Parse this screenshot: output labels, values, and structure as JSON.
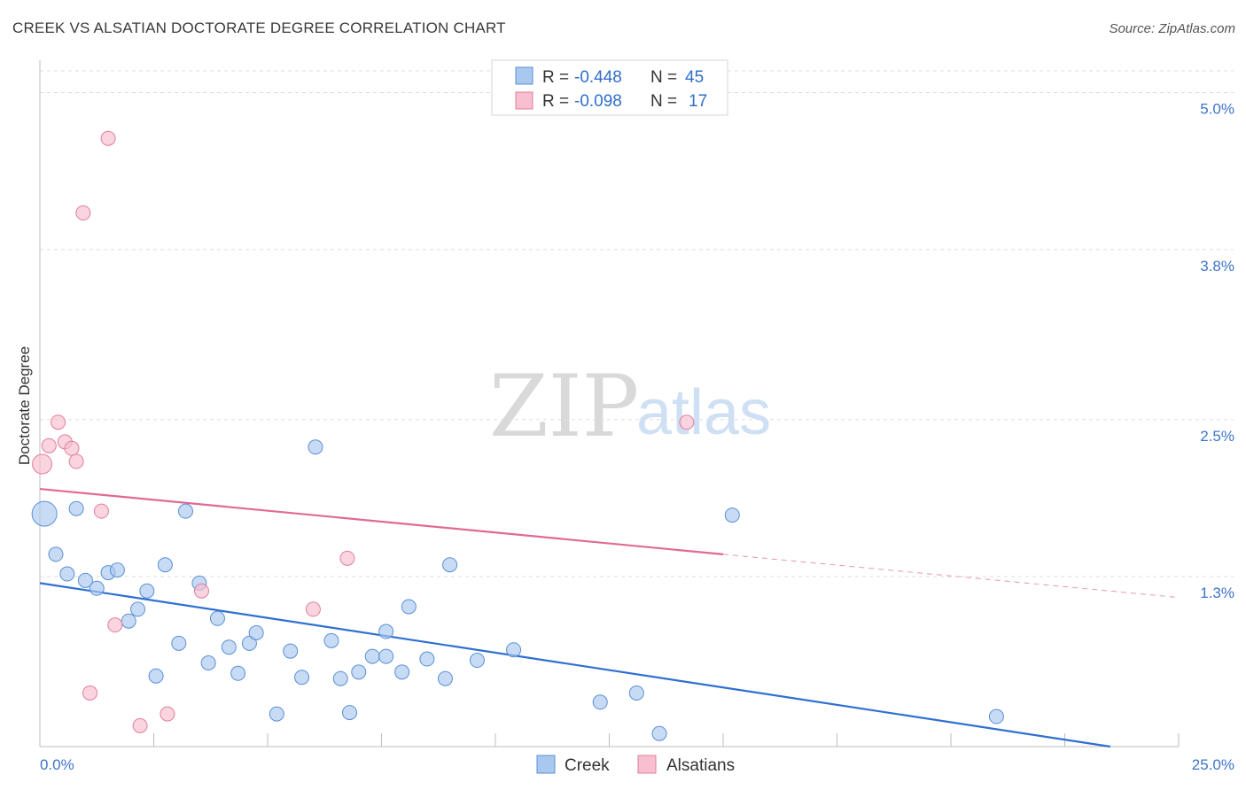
{
  "title": "CREEK VS ALSATIAN DOCTORATE DEGREE CORRELATION CHART",
  "source": "Source: ZipAtlas.com",
  "watermark": {
    "zip": "ZIP",
    "atlas": "atlas"
  },
  "chart_data": {
    "type": "scatter",
    "xlabel": "",
    "ylabel": "Doctorate Degree",
    "xlim": [
      0,
      25
    ],
    "ylim": [
      0.0,
      5.2
    ],
    "x_tick_labels": [
      {
        "value": 0,
        "label": "0.0%"
      },
      {
        "value": 25,
        "label": "25.0%"
      }
    ],
    "y_ticks": [
      {
        "value": 1.3,
        "label": "1.3%"
      },
      {
        "value": 2.5,
        "label": "2.5%"
      },
      {
        "value": 3.8,
        "label": "3.8%"
      },
      {
        "value": 5.0,
        "label": "5.0%"
      }
    ],
    "legend_top": [
      {
        "name": "Creek",
        "r_label": "R =",
        "r": "-0.448",
        "n_label": "N =",
        "n": "45",
        "color": "#a9c8ef",
        "stroke": "#5b8fd6"
      },
      {
        "name": "Alsatians",
        "r_label": "R =",
        "r": "-0.098",
        "n_label": "N =",
        "n": "17",
        "color": "#f7bfcf",
        "stroke": "#e27d9b"
      }
    ],
    "series": [
      {
        "name": "Creek",
        "color": "#a9c8ef",
        "stroke": "#5b8fd6",
        "trend": {
          "x0": 0,
          "y0": 1.25,
          "x1": 23.5,
          "y1": 0.0,
          "color": "#2f6fd1"
        },
        "points": [
          [
            0.1,
            1.78,
            14
          ],
          [
            0.35,
            1.47,
            8
          ],
          [
            0.6,
            1.32,
            8
          ],
          [
            0.8,
            1.82,
            8
          ],
          [
            1.0,
            1.27,
            8
          ],
          [
            1.25,
            1.21,
            8
          ],
          [
            1.5,
            1.33,
            8
          ],
          [
            1.7,
            1.35,
            8
          ],
          [
            1.95,
            0.96,
            8
          ],
          [
            2.15,
            1.05,
            8
          ],
          [
            2.35,
            1.19,
            8
          ],
          [
            2.55,
            0.54,
            8
          ],
          [
            2.75,
            1.39,
            8
          ],
          [
            3.05,
            0.79,
            8
          ],
          [
            3.2,
            1.8,
            8
          ],
          [
            3.5,
            1.25,
            8
          ],
          [
            3.7,
            0.64,
            8
          ],
          [
            3.9,
            0.98,
            8
          ],
          [
            4.15,
            0.76,
            8
          ],
          [
            4.35,
            0.56,
            8
          ],
          [
            4.6,
            0.79,
            8
          ],
          [
            4.75,
            0.87,
            8
          ],
          [
            5.2,
            0.25,
            8
          ],
          [
            5.5,
            0.73,
            8
          ],
          [
            5.75,
            0.53,
            8
          ],
          [
            6.05,
            2.29,
            8
          ],
          [
            6.4,
            0.81,
            8
          ],
          [
            6.6,
            0.52,
            8
          ],
          [
            6.8,
            0.26,
            8
          ],
          [
            7.0,
            0.57,
            8
          ],
          [
            7.3,
            0.69,
            8
          ],
          [
            7.6,
            0.69,
            8
          ],
          [
            7.6,
            0.88,
            8
          ],
          [
            7.95,
            0.57,
            8
          ],
          [
            8.1,
            1.07,
            8
          ],
          [
            8.5,
            0.67,
            8
          ],
          [
            8.9,
            0.52,
            8
          ],
          [
            9.0,
            1.39,
            8
          ],
          [
            9.6,
            0.66,
            8
          ],
          [
            10.4,
            0.74,
            8
          ],
          [
            12.3,
            0.34,
            8
          ],
          [
            13.1,
            0.41,
            8
          ],
          [
            13.6,
            0.1,
            8
          ],
          [
            15.2,
            1.77,
            8
          ],
          [
            21.0,
            0.23,
            8
          ]
        ]
      },
      {
        "name": "Alsatians",
        "color": "#f7bfcf",
        "stroke": "#e27d9b",
        "trend": {
          "x0": 0,
          "y0": 1.97,
          "x1": 15.0,
          "y1": 1.47,
          "color": "#e06a93",
          "dash_to_x": 25.0,
          "dash_to_y": 1.14
        },
        "points": [
          [
            0.05,
            2.16,
            11
          ],
          [
            0.2,
            2.3,
            8
          ],
          [
            0.4,
            2.48,
            8
          ],
          [
            0.55,
            2.33,
            8
          ],
          [
            0.7,
            2.28,
            8
          ],
          [
            0.8,
            2.18,
            8
          ],
          [
            0.95,
            4.08,
            8
          ],
          [
            1.1,
            0.41,
            8
          ],
          [
            1.35,
            1.8,
            8
          ],
          [
            1.5,
            4.65,
            8
          ],
          [
            1.65,
            0.93,
            8
          ],
          [
            2.2,
            0.16,
            8
          ],
          [
            2.8,
            0.25,
            8
          ],
          [
            3.55,
            1.19,
            8
          ],
          [
            6.0,
            1.05,
            8
          ],
          [
            6.75,
            1.44,
            8
          ],
          [
            14.2,
            2.48,
            8
          ]
        ]
      }
    ]
  },
  "bottom_legend": [
    {
      "label": "Creek",
      "color": "#a9c8ef",
      "stroke": "#5b8fd6"
    },
    {
      "label": "Alsatians",
      "color": "#f7bfcf",
      "stroke": "#e27d9b"
    }
  ]
}
